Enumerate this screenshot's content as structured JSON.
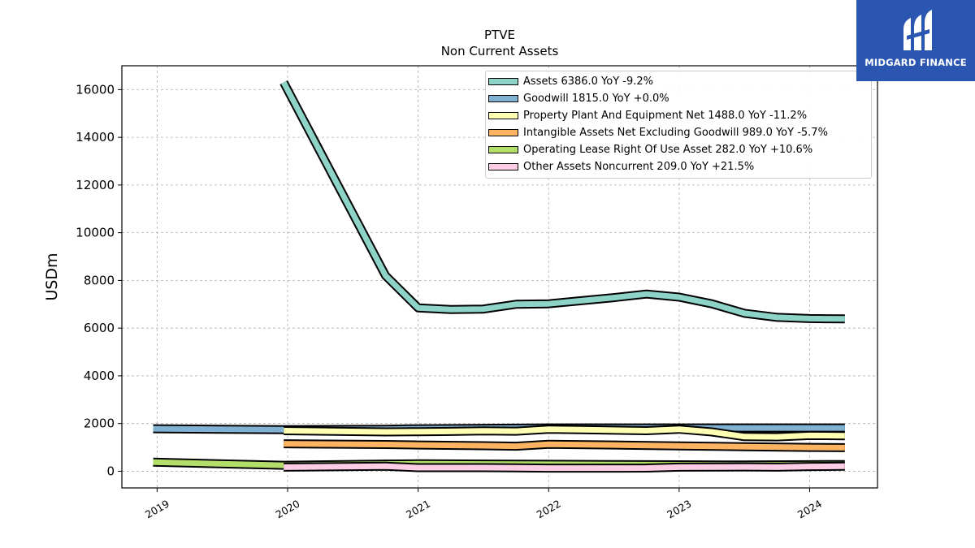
{
  "brand": {
    "name": "MIDGARD FINANCE",
    "color": "#2a55b0",
    "icon": "midgard-logo-icon"
  },
  "chart_data": {
    "type": "line",
    "title": "PTVE",
    "subtitle": "Non Current  Assets",
    "ylabel": "USDm",
    "xlabel": "",
    "xlim": [
      2018.73,
      2024.52
    ],
    "ylim": [
      -700,
      17000
    ],
    "yticks": [
      0,
      2000,
      4000,
      6000,
      8000,
      10000,
      12000,
      14000,
      16000
    ],
    "xticks": [
      "2019",
      "2020",
      "2021",
      "2022",
      "2023",
      "2024"
    ],
    "grid": true,
    "legend_position": "top-right",
    "series": [
      {
        "name": "Assets",
        "legend": "Assets  6386.0 YoY -9.2%",
        "color": "#8dd3c7",
        "points": [
          [
            2019.97,
            16300
          ],
          [
            2020.75,
            8200
          ],
          [
            2021.0,
            6850
          ],
          [
            2021.25,
            6780
          ],
          [
            2021.5,
            6800
          ],
          [
            2021.75,
            7000
          ],
          [
            2022.0,
            7020
          ],
          [
            2022.25,
            7150
          ],
          [
            2022.5,
            7280
          ],
          [
            2022.75,
            7430
          ],
          [
            2023.0,
            7300
          ],
          [
            2023.25,
            7020
          ],
          [
            2023.5,
            6620
          ],
          [
            2023.75,
            6450
          ],
          [
            2024.0,
            6400
          ],
          [
            2024.27,
            6386
          ]
        ]
      },
      {
        "name": "Goodwill",
        "legend": "Goodwill  1815.0 YoY +0.0%",
        "color": "#80b1d3",
        "points": [
          [
            2018.97,
            1780
          ],
          [
            2019.97,
            1740
          ],
          [
            2020.75,
            1760
          ],
          [
            2021.0,
            1780
          ],
          [
            2021.5,
            1800
          ],
          [
            2022.0,
            1815
          ],
          [
            2022.5,
            1815
          ],
          [
            2023.0,
            1815
          ],
          [
            2023.5,
            1815
          ],
          [
            2024.0,
            1815
          ],
          [
            2024.27,
            1815
          ]
        ]
      },
      {
        "name": "Property Plant And Equipment Net",
        "legend": "Property Plant And Equipment Net  1488.0 YoY -11.2%",
        "color": "#ffffb3",
        "points": [
          [
            2019.97,
            1700
          ],
          [
            2020.75,
            1650
          ],
          [
            2021.0,
            1660
          ],
          [
            2021.25,
            1670
          ],
          [
            2021.5,
            1690
          ],
          [
            2021.75,
            1680
          ],
          [
            2022.0,
            1760
          ],
          [
            2022.25,
            1740
          ],
          [
            2022.5,
            1720
          ],
          [
            2022.75,
            1700
          ],
          [
            2023.0,
            1760
          ],
          [
            2023.25,
            1650
          ],
          [
            2023.5,
            1450
          ],
          [
            2023.75,
            1440
          ],
          [
            2024.0,
            1500
          ],
          [
            2024.27,
            1488
          ]
        ]
      },
      {
        "name": "Intangible Assets Net Excluding Goodwill",
        "legend": "Intangible Assets Net Excluding Goodwill  989.0 YoY -5.7%",
        "color": "#fdb462",
        "points": [
          [
            2019.97,
            1150
          ],
          [
            2020.75,
            1120
          ],
          [
            2021.0,
            1100
          ],
          [
            2021.5,
            1070
          ],
          [
            2021.75,
            1050
          ],
          [
            2022.0,
            1130
          ],
          [
            2022.5,
            1100
          ],
          [
            2023.0,
            1060
          ],
          [
            2023.5,
            1030
          ],
          [
            2024.0,
            1000
          ],
          [
            2024.27,
            989
          ]
        ]
      },
      {
        "name": "Operating Lease Right Of Use Asset",
        "legend": "Operating Lease Right Of Use Asset  282.0 YoY +10.6%",
        "color": "#b3de69",
        "points": [
          [
            2018.97,
            380
          ],
          [
            2019.97,
            250
          ],
          [
            2020.75,
            300
          ],
          [
            2021.0,
            310
          ],
          [
            2021.5,
            300
          ],
          [
            2022.0,
            290
          ],
          [
            2022.5,
            280
          ],
          [
            2023.0,
            270
          ],
          [
            2023.5,
            260
          ],
          [
            2024.0,
            275
          ],
          [
            2024.27,
            282
          ]
        ]
      },
      {
        "name": "Other Assets Noncurrent",
        "legend": "Other Assets Noncurrent  209.0 YoY +21.5%",
        "color": "#fccde5",
        "points": [
          [
            2019.97,
            170
          ],
          [
            2020.75,
            210
          ],
          [
            2021.0,
            150
          ],
          [
            2021.5,
            150
          ],
          [
            2022.0,
            130
          ],
          [
            2022.5,
            130
          ],
          [
            2022.75,
            135
          ],
          [
            2023.0,
            170
          ],
          [
            2023.5,
            180
          ],
          [
            2023.75,
            170
          ],
          [
            2024.0,
            200
          ],
          [
            2024.27,
            209
          ]
        ]
      }
    ]
  }
}
